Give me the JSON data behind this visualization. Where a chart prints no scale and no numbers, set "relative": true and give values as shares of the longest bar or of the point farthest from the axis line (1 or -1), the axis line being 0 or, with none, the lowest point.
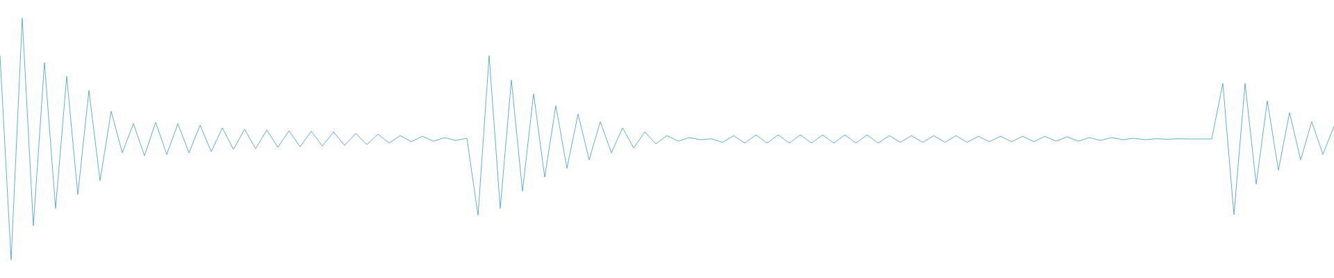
{
  "chart_data": {
    "type": "line",
    "relative": true,
    "marker": "none",
    "categories": [
      null,
      null,
      null,
      null,
      null,
      null,
      null,
      null,
      null,
      null,
      null,
      null,
      null,
      null,
      null,
      null,
      null,
      null,
      null,
      null,
      null,
      null,
      null,
      null,
      null,
      null,
      null,
      null,
      null,
      null,
      null,
      null,
      null,
      null,
      null,
      null,
      null,
      null,
      null,
      null,
      null,
      null,
      null,
      null,
      null,
      null,
      null,
      null,
      null,
      null,
      null,
      null,
      null,
      null,
      null,
      null,
      null,
      null,
      null,
      null,
      null,
      null,
      null,
      null,
      null,
      null,
      null,
      null,
      null,
      null,
      null,
      null,
      null,
      null,
      null,
      null,
      null,
      null,
      null,
      null,
      null,
      null,
      null,
      null,
      null,
      null,
      null,
      null,
      null,
      null,
      null,
      null,
      null,
      null,
      null,
      null,
      null,
      null,
      null,
      null,
      null,
      null,
      null,
      null,
      null,
      null,
      null,
      null,
      null,
      null,
      null,
      null,
      null,
      null,
      null,
      null,
      null,
      null,
      null,
      null,
      null
    ],
    "series": [
      {
        "color": "#5dade2",
        "values": [
          0.845,
          0,
          1,
          0.141,
          0.816,
          0.213,
          0.759,
          0.27,
          0.701,
          0.328,
          0.615,
          0.443,
          0.563,
          0.431,
          0.569,
          0.437,
          0.563,
          0.443,
          0.557,
          0.448,
          0.546,
          0.457,
          0.54,
          0.46,
          0.537,
          0.466,
          0.534,
          0.468,
          0.532,
          0.471,
          0.529,
          0.474,
          0.523,
          0.477,
          0.52,
          0.483,
          0.514,
          0.489,
          0.511,
          0.491,
          0.506,
          0.494,
          0.503,
          0.184,
          0.845,
          0.213,
          0.744,
          0.284,
          0.687,
          0.342,
          0.638,
          0.379,
          0.603,
          0.414,
          0.572,
          0.443,
          0.546,
          0.463,
          0.529,
          0.48,
          0.514,
          0.491,
          0.506,
          0.497,
          0.501,
          0.486,
          0.514,
          0.483,
          0.517,
          0.483,
          0.517,
          0.483,
          0.517,
          0.483,
          0.517,
          0.483,
          0.517,
          0.483,
          0.517,
          0.483,
          0.514,
          0.486,
          0.514,
          0.486,
          0.514,
          0.486,
          0.514,
          0.486,
          0.511,
          0.489,
          0.511,
          0.489,
          0.511,
          0.489,
          0.511,
          0.491,
          0.509,
          0.491,
          0.506,
          0.494,
          0.506,
          0.497,
          0.503,
          0.497,
          0.501,
          0.499,
          0.501,
          0.5,
          0.5,
          0.5,
          0.73,
          0.187,
          0.73,
          0.313,
          0.658,
          0.371,
          0.609,
          0.414,
          0.572,
          0.437,
          0.552
        ]
      }
    ]
  }
}
